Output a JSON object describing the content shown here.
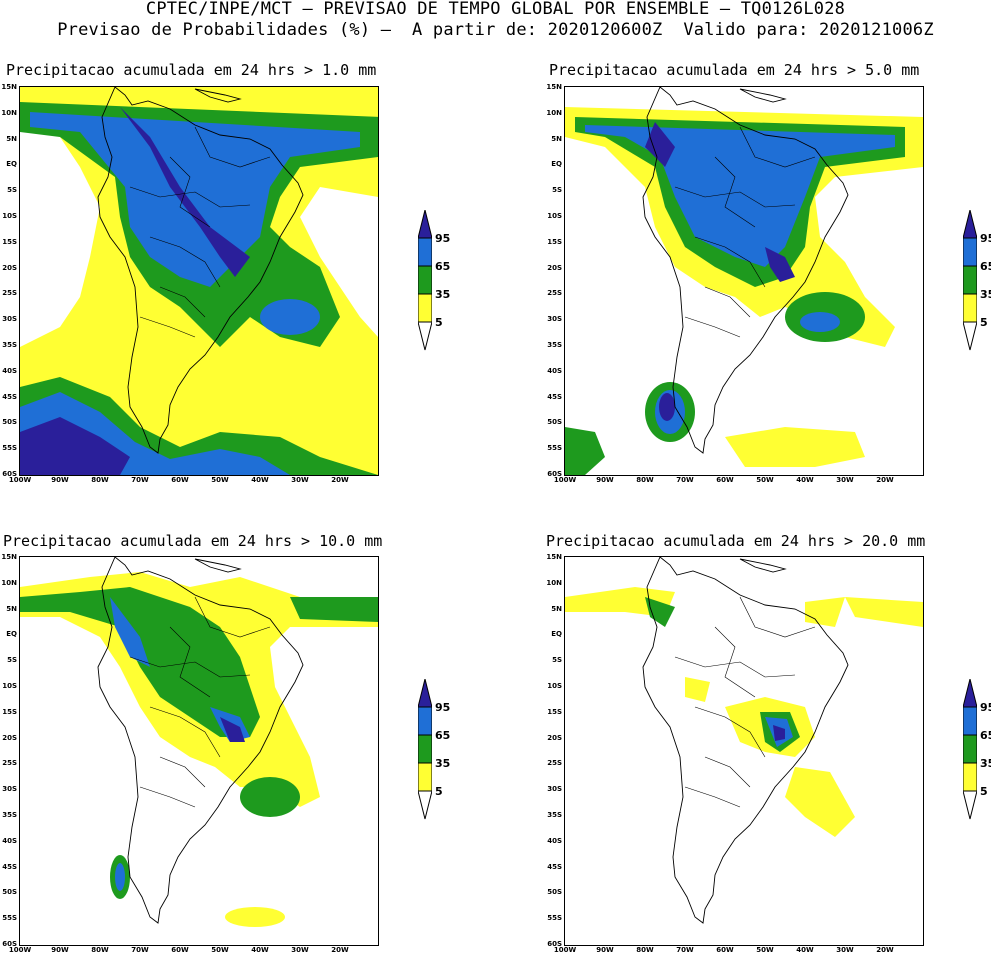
{
  "header": {
    "line1": "CPTEC/INPE/MCT — PREVISAO DE TEMPO GLOBAL POR ENSEMBLE — TQ0126L028",
    "line2": "Previsao de Probabilidades (%) —  A partir de: 2020120600Z  Valido para: 2020121006Z"
  },
  "panels": [
    {
      "title": "Precipitacao acumulada em 24 hrs > 1.0 mm"
    },
    {
      "title": "Precipitacao acumulada em 24 hrs > 5.0 mm"
    },
    {
      "title": "Precipitacao acumulada em 24 hrs > 10.0 mm"
    },
    {
      "title": "Precipitacao acumulada em 24 hrs > 20.0 mm"
    }
  ],
  "lat_labels": [
    "15N",
    "10N",
    "5N",
    "EQ",
    "5S",
    "10S",
    "15S",
    "20S",
    "25S",
    "30S",
    "35S",
    "40S",
    "45S",
    "50S",
    "55S",
    "60S"
  ],
  "lon_labels": [
    "100W",
    "90W",
    "80W",
    "70W",
    "60W",
    "50W",
    "40W",
    "30W",
    "20W"
  ],
  "colorbar": {
    "levels": [
      "95",
      "65",
      "35",
      "5"
    ],
    "colors": {
      "lvl5": "#ffff33",
      "lvl35": "#1e9a1e",
      "lvl65": "#1f6fd6",
      "lvl95": "#2a1f9a"
    }
  }
}
